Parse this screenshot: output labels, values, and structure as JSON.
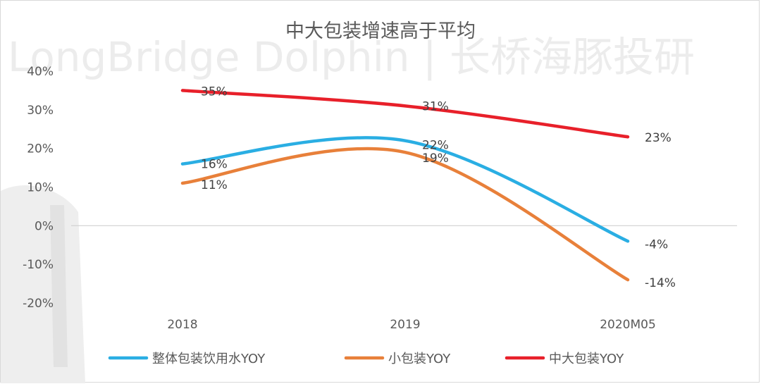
{
  "watermark": "LongBridge Dolphin | 长桥海豚投研",
  "colors": {
    "total": "#2AAEE3",
    "small": "#E8803A",
    "large": "#E8202A",
    "axis": "#d0d0d0",
    "tick": "#595959"
  },
  "chart_data": {
    "type": "line",
    "title": "中大包装增速高于平均",
    "xlabel": "",
    "ylabel": "",
    "categories": [
      "2018",
      "2019",
      "2020M05"
    ],
    "ylim": [
      -0.2,
      0.4
    ],
    "yticks": [
      0.4,
      0.3,
      0.2,
      0.1,
      0.0,
      -0.1,
      -0.2
    ],
    "ytick_labels": [
      "40%",
      "30%",
      "20%",
      "10%",
      "0%",
      "-10%",
      "-20%"
    ],
    "grid": false,
    "legend_position": "bottom",
    "series": [
      {
        "key": "total",
        "name": "整体包装饮用水YOY",
        "values": [
          0.16,
          0.22,
          -0.04
        ],
        "labels": [
          "16%",
          "22%",
          "-4%"
        ]
      },
      {
        "key": "small",
        "name": "小包装YOY",
        "values": [
          0.11,
          0.19,
          -0.14
        ],
        "labels": [
          "11%",
          "19%",
          "-14%"
        ]
      },
      {
        "key": "large",
        "name": "中大包装YOY",
        "values": [
          0.35,
          0.31,
          0.23
        ],
        "labels": [
          "35%",
          "31%",
          "23%"
        ]
      }
    ]
  }
}
